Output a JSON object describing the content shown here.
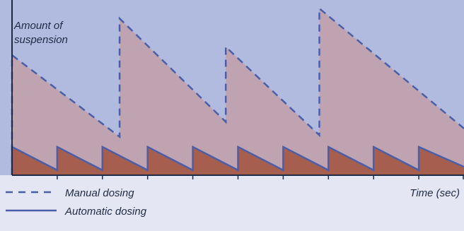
{
  "chart_data": {
    "type": "area",
    "title": "",
    "ylabel": "Amount of suspension",
    "xlabel": "Time (sec)",
    "grid": false,
    "legend_placement": "bottom-left",
    "xlim": [
      0,
      10
    ],
    "ylim": [
      0,
      100
    ],
    "tick_count": 10,
    "series": [
      {
        "name": "Manual dosing",
        "style": "dashed",
        "x": [
          0,
          0,
          2.38,
          2.38,
          4.73,
          4.73,
          6.8,
          6.8,
          10
        ],
        "y": [
          0,
          72,
          23,
          94,
          32,
          77,
          24,
          100,
          28
        ]
      },
      {
        "name": "Automatic dosing",
        "style": "solid",
        "x": [
          0,
          0,
          1.0,
          1.0,
          2.0,
          2.0,
          3.0,
          3.0,
          4.0,
          4.0,
          5.0,
          5.0,
          6.0,
          6.0,
          7.0,
          7.0,
          8.0,
          8.0,
          9.0,
          9.0,
          10
        ],
        "y": [
          0,
          17,
          3,
          17,
          3,
          17,
          3,
          17,
          3,
          17,
          3,
          17,
          3,
          17,
          3,
          17,
          3,
          17,
          3,
          17,
          5
        ]
      }
    ],
    "colors": {
      "background": "#e4e7f3",
      "plot_area": "#b1badf",
      "manual_fill": "#bfa3b0",
      "automatic_fill": "#a65f4e",
      "line": "#4b5fa8",
      "axis": "#1f2a44"
    }
  }
}
